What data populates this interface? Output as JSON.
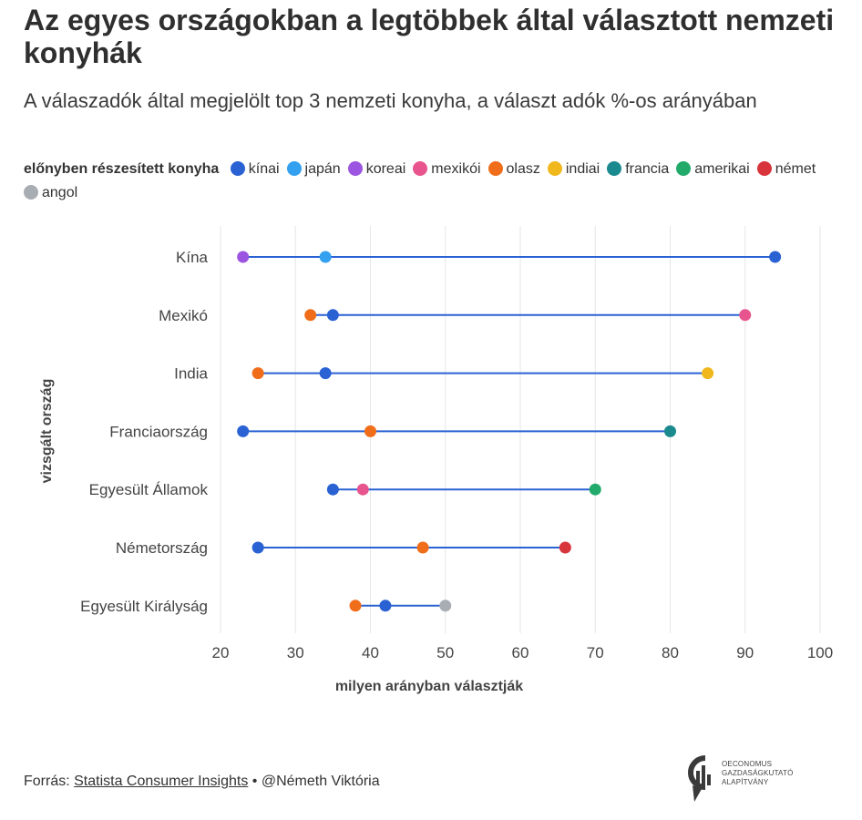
{
  "title": "Az egyes országokban a legtöbbek által választott nemzeti konyhák",
  "subtitle": "A válaszadók által megjelölt top 3 nemzeti konyha, a választ adók %-os arányában",
  "legend": {
    "title": "előnyben részesített konyha",
    "items": [
      {
        "label": "kínai",
        "color": "#2a62d4"
      },
      {
        "label": "japán",
        "color": "#33a0f0"
      },
      {
        "label": "koreai",
        "color": "#9b55e0"
      },
      {
        "label": "mexikói",
        "color": "#e8558e"
      },
      {
        "label": "olasz",
        "color": "#f06d1a"
      },
      {
        "label": "indiai",
        "color": "#f0b81c"
      },
      {
        "label": "francia",
        "color": "#1a8a8e"
      },
      {
        "label": "amerikai",
        "color": "#22aa6a"
      },
      {
        "label": "német",
        "color": "#d8343c"
      },
      {
        "label": "angol",
        "color": "#a8adb4"
      }
    ]
  },
  "chart_data": {
    "type": "scatter",
    "xlabel": "milyen arányban választják",
    "ylabel": "vizsgált ország",
    "xlim": [
      20,
      100
    ],
    "xticks": [
      20,
      30,
      40,
      50,
      60,
      70,
      80,
      90,
      100
    ],
    "categories": [
      "Kína",
      "Mexikó",
      "India",
      "Franciaország",
      "Egyesült Államok",
      "Németország",
      "Egyesült Királyság"
    ],
    "rows": [
      {
        "country": "Kína",
        "points": [
          {
            "cuisine": "koreai",
            "value": 23
          },
          {
            "cuisine": "japán",
            "value": 34
          },
          {
            "cuisine": "kínai",
            "value": 94
          }
        ]
      },
      {
        "country": "Mexikó",
        "points": [
          {
            "cuisine": "olasz",
            "value": 32
          },
          {
            "cuisine": "kínai",
            "value": 35
          },
          {
            "cuisine": "mexikói",
            "value": 90
          }
        ]
      },
      {
        "country": "India",
        "points": [
          {
            "cuisine": "olasz",
            "value": 25
          },
          {
            "cuisine": "kínai",
            "value": 34
          },
          {
            "cuisine": "indiai",
            "value": 85
          }
        ]
      },
      {
        "country": "Franciaország",
        "points": [
          {
            "cuisine": "kínai",
            "value": 23
          },
          {
            "cuisine": "olasz",
            "value": 40
          },
          {
            "cuisine": "francia",
            "value": 80
          }
        ]
      },
      {
        "country": "Egyesült Államok",
        "points": [
          {
            "cuisine": "kínai",
            "value": 35
          },
          {
            "cuisine": "mexikói",
            "value": 39
          },
          {
            "cuisine": "amerikai",
            "value": 70
          }
        ]
      },
      {
        "country": "Németország",
        "points": [
          {
            "cuisine": "kínai",
            "value": 25
          },
          {
            "cuisine": "olasz",
            "value": 47
          },
          {
            "cuisine": "német",
            "value": 66
          }
        ]
      },
      {
        "country": "Egyesült Királyság",
        "points": [
          {
            "cuisine": "olasz",
            "value": 38
          },
          {
            "cuisine": "kínai",
            "value": 42
          },
          {
            "cuisine": "angol",
            "value": 50
          }
        ]
      }
    ],
    "line_color": "#2a62d4",
    "grid": true
  },
  "footer": {
    "prefix": "Forrás:",
    "source": "Statista Consumer Insights",
    "separator": "•",
    "author": "@Németh Viktória"
  },
  "logo": {
    "line1": "OECONOMUS",
    "line2": "GAZDASÁGKUTATÓ",
    "line3": "ALAPÍTVÁNY"
  }
}
